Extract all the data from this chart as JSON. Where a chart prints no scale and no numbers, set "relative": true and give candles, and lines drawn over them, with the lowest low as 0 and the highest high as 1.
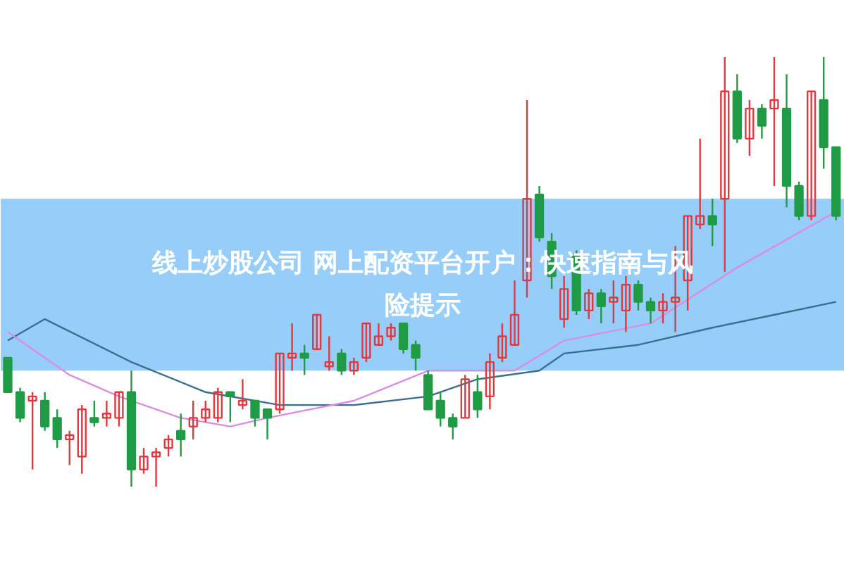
{
  "chart_data": {
    "type": "candlestick",
    "title": "线上炒股公司 网上配资平台开户：快速指南与风险提示",
    "relative": true,
    "bands": [
      {
        "axis": "y",
        "from": 0.27,
        "to": 0.67,
        "color": "#8cc8f8"
      }
    ],
    "colors": [
      "#1f9b45",
      "#1f9b45",
      "#e0383e",
      "#1f9b45",
      "#1f9b45",
      "#e0383e",
      "#e0383e",
      "#1f9b45",
      "#e0383e",
      "#e0383e",
      "#1f9b45",
      "#e0383e",
      "#e0383e",
      "#e0383e",
      "#1f9b45",
      "#e0383e",
      "#e0383e",
      "#e0383e",
      "#1f9b45",
      "#e0383e",
      "#1f9b45",
      "#1f9b45",
      "#e0383e",
      "#e0383e",
      "#1f9b45",
      "#e0383e",
      "#e0383e",
      "#1f9b45",
      "#e0383e",
      "#e0383e",
      "#e0383e",
      "#e0383e",
      "#1f9b45",
      "#1f9b45",
      "#1f9b45",
      "#1f9b45",
      "#1f9b45",
      "#e0383e",
      "#1f9b45",
      "#e0383e",
      "#e0383e",
      "#e0383e",
      "#e0383e",
      "#1f9b45",
      "#1f9b45",
      "#e0383e",
      "#1f9b45",
      "#e0383e",
      "#1f9b45",
      "#e0383e",
      "#e0383e",
      "#1f9b45",
      "#1f9b45",
      "#e0383e",
      "#e0383e",
      "#e0383e",
      "#e0383e",
      "#1f9b45",
      "#e0383e",
      "#1f9b45",
      "#e0383e",
      "#1f9b45",
      "#e0383e",
      "#1f9b45",
      "#1f9b45",
      "#e0383e",
      "#1f9b45",
      "#1f9b45"
    ],
    "categories": [
      null,
      null,
      null,
      null,
      null,
      null,
      null,
      null,
      null,
      null,
      null,
      null,
      null,
      null,
      null,
      null,
      null,
      null,
      null,
      null,
      null,
      null,
      null,
      null,
      null,
      null,
      null,
      null,
      null,
      null,
      null,
      null,
      null,
      null,
      null,
      null,
      null,
      null,
      null,
      null,
      null,
      null,
      null,
      null,
      null,
      null,
      null,
      null,
      null,
      null,
      null,
      null,
      null,
      null,
      null,
      null,
      null,
      null,
      null,
      null,
      null,
      null,
      null,
      null,
      null,
      null,
      null,
      null
    ],
    "ohlc": [
      [
        0.3,
        0.3,
        0.22,
        0.22
      ],
      [
        0.22,
        0.23,
        0.15,
        0.16
      ],
      [
        0.2,
        0.22,
        0.04,
        0.21
      ],
      [
        0.2,
        0.22,
        0.13,
        0.14
      ],
      [
        0.16,
        0.18,
        0.09,
        0.11
      ],
      [
        0.11,
        0.13,
        0.05,
        0.12
      ],
      [
        0.07,
        0.19,
        0.03,
        0.18
      ],
      [
        0.16,
        0.2,
        0.14,
        0.15
      ],
      [
        0.16,
        0.2,
        0.14,
        0.17
      ],
      [
        0.16,
        0.22,
        0.14,
        0.22
      ],
      [
        0.22,
        0.27,
        0,
        0.04
      ],
      [
        0.04,
        0.09,
        0.03,
        0.07
      ],
      [
        0.07,
        0.09,
        0,
        0.08
      ],
      [
        0.09,
        0.12,
        0.07,
        0.11
      ],
      [
        0.13,
        0.17,
        0.07,
        0.11
      ],
      [
        0.14,
        0.2,
        0.11,
        0.16
      ],
      [
        0.16,
        0.2,
        0.15,
        0.18
      ],
      [
        0.16,
        0.23,
        0.15,
        0.22
      ],
      [
        0.22,
        0.22,
        0.15,
        0.21
      ],
      [
        0.19,
        0.25,
        0.18,
        0.2
      ],
      [
        0.2,
        0.2,
        0.14,
        0.16
      ],
      [
        0.18,
        0.18,
        0.11,
        0.16
      ],
      [
        0.18,
        0.31,
        0.17,
        0.31
      ],
      [
        0.3,
        0.38,
        0.27,
        0.31
      ],
      [
        0.31,
        0.33,
        0.26,
        0.3
      ],
      [
        0.32,
        0.4,
        0.32,
        0.4
      ],
      [
        0.28,
        0.35,
        0.27,
        0.29
      ],
      [
        0.31,
        0.32,
        0.26,
        0.27
      ],
      [
        0.27,
        0.3,
        0.26,
        0.29
      ],
      [
        0.3,
        0.38,
        0.29,
        0.38
      ],
      [
        0.33,
        0.38,
        0.33,
        0.35
      ],
      [
        0.35,
        0.38,
        0.34,
        0.37
      ],
      [
        0.38,
        0.38,
        0.31,
        0.32
      ],
      [
        0.33,
        0.34,
        0.27,
        0.3
      ],
      [
        0.26,
        0.27,
        0.18,
        0.18
      ],
      [
        0.2,
        0.22,
        0.14,
        0.16
      ],
      [
        0.16,
        0.17,
        0.11,
        0.14
      ],
      [
        0.16,
        0.26,
        0.16,
        0.25
      ],
      [
        0.22,
        0.26,
        0.16,
        0.18
      ],
      [
        0.21,
        0.31,
        0.18,
        0.29
      ],
      [
        0.3,
        0.38,
        0.29,
        0.35
      ],
      [
        0.33,
        0.48,
        0.33,
        0.4
      ],
      [
        0.48,
        0.9,
        0.44,
        0.67
      ],
      [
        0.68,
        0.7,
        0.57,
        0.58
      ],
      [
        0.57,
        0.59,
        0.46,
        0.49
      ],
      [
        0.39,
        0.49,
        0.37,
        0.46
      ],
      [
        0.54,
        0.55,
        0.4,
        0.41
      ],
      [
        0.41,
        0.46,
        0.39,
        0.45
      ],
      [
        0.45,
        0.46,
        0.38,
        0.42
      ],
      [
        0.43,
        0.48,
        0.38,
        0.44
      ],
      [
        0.41,
        0.49,
        0.36,
        0.47
      ],
      [
        0.47,
        0.48,
        0.41,
        0.43
      ],
      [
        0.43,
        0.44,
        0.38,
        0.41
      ],
      [
        0.41,
        0.45,
        0.38,
        0.43
      ],
      [
        0.43,
        0.56,
        0.36,
        0.44
      ],
      [
        0.48,
        0.63,
        0.41,
        0.63
      ],
      [
        0.61,
        0.81,
        0.6,
        0.63
      ],
      [
        0.63,
        0.67,
        0.56,
        0.61
      ],
      [
        0.67,
        1,
        0.5,
        0.92
      ],
      [
        0.92,
        0.96,
        0.8,
        0.81
      ],
      [
        0.81,
        0.9,
        0.77,
        0.88
      ],
      [
        0.88,
        0.89,
        0.81,
        0.84
      ],
      [
        0.88,
        1,
        0.7,
        0.9
      ],
      [
        0.88,
        0.96,
        0.65,
        0.7
      ],
      [
        0.7,
        0.71,
        0.62,
        0.63
      ],
      [
        0.63,
        0.92,
        0.62,
        0.92
      ],
      [
        0.9,
        1,
        0.74,
        0.79
      ],
      [
        0.79,
        0.79,
        0.62,
        0.63
      ]
    ],
    "series": [
      {
        "type": "line",
        "color": "#3b6e8f",
        "values": [
          0.34,
          null,
          null,
          0.39,
          null,
          null,
          null,
          null,
          null,
          null,
          0.29,
          null,
          null,
          null,
          null,
          null,
          0.22,
          null,
          null,
          null,
          null,
          null,
          0.19,
          null,
          null,
          null,
          null,
          null,
          0.19,
          null,
          null,
          null,
          null,
          null,
          0.21,
          null,
          null,
          null,
          0.25,
          null,
          null,
          null,
          null,
          0.27,
          null,
          0.31,
          null,
          null,
          null,
          null,
          null,
          0.33,
          null,
          null,
          null,
          null,
          null,
          0.37,
          null,
          null,
          null,
          null,
          0.4,
          null,
          null,
          null,
          null,
          0.43
        ]
      },
      {
        "type": "line",
        "color": "#d98ee0",
        "values": [
          0.36,
          null,
          null,
          null,
          null,
          0.26,
          null,
          null,
          null,
          0.21,
          null,
          null,
          null,
          null,
          0.16,
          null,
          null,
          null,
          0.14,
          null,
          null,
          0.16,
          null,
          null,
          null,
          null,
          null,
          null,
          0.2,
          null,
          null,
          null,
          null,
          null,
          0.27,
          null,
          null,
          null,
          null,
          null,
          null,
          0.27,
          null,
          null,
          null,
          0.34,
          null,
          null,
          null,
          null,
          null,
          null,
          0.38,
          null,
          null,
          null,
          null,
          null,
          null,
          0.51,
          null,
          null,
          null,
          null,
          null,
          null,
          null,
          0.64
        ]
      }
    ]
  }
}
